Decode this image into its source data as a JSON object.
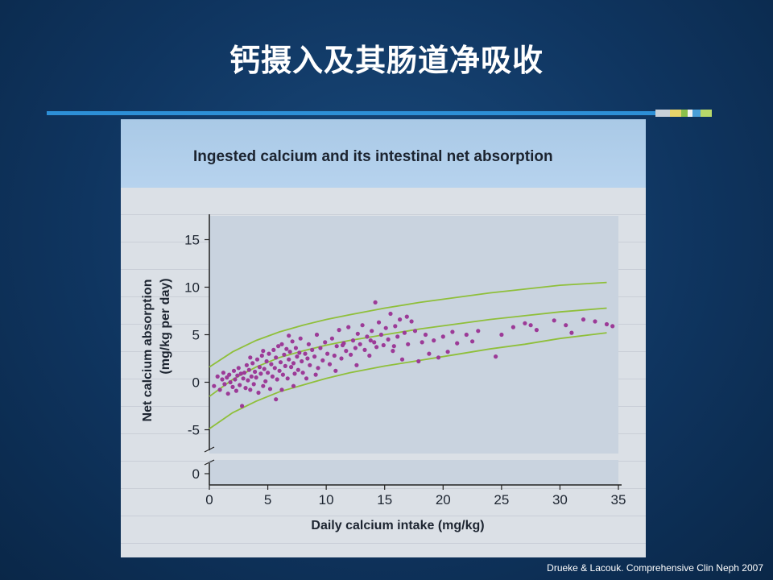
{
  "slide": {
    "title": "钙摄入及其肠道净吸收",
    "citation": "Drueke & Lacouk. Comprehensive Clin Neph 2007",
    "rule_colors": [
      "#c8d0d8",
      "#e8d46a",
      "#8cc04a",
      "#f2f2f2",
      "#4a9fd8",
      "#b8d86a"
    ]
  },
  "chart_data": {
    "type": "scatter",
    "title": "Ingested calcium and its intestinal net absorption",
    "xlabel": "Daily calcium intake (mg/kg)",
    "ylabel_line1": "Net calcium absorption",
    "ylabel_line2": "(mg/kg per day)",
    "xlim": [
      0,
      35
    ],
    "ylim_upper": [
      -7.5,
      17.5
    ],
    "ylim_lower": [
      -1,
      1
    ],
    "x_ticks": [
      "0",
      "5",
      "10",
      "15",
      "20",
      "25",
      "30",
      "35"
    ],
    "y_ticks_upper": [
      "15",
      "10",
      "5",
      "0",
      "-5"
    ],
    "y_ticks_lower": [
      "0"
    ],
    "colors": {
      "points": "#9c3a97",
      "curves": "#8fbf3a",
      "plot_bg": "#c9d3df"
    },
    "points": [
      [
        0.4,
        -0.4
      ],
      [
        0.7,
        0.6
      ],
      [
        0.9,
        -0.8
      ],
      [
        1.1,
        0.3
      ],
      [
        1.2,
        1.0
      ],
      [
        1.3,
        -0.2
      ],
      [
        1.5,
        0.5
      ],
      [
        1.6,
        -1.2
      ],
      [
        1.7,
        0.8
      ],
      [
        1.8,
        0.0
      ],
      [
        2.0,
        -0.5
      ],
      [
        2.1,
        1.2
      ],
      [
        2.2,
        0.3
      ],
      [
        2.3,
        -0.9
      ],
      [
        2.4,
        0.7
      ],
      [
        2.5,
        1.5
      ],
      [
        2.6,
        -0.3
      ],
      [
        2.7,
        0.9
      ],
      [
        2.8,
        -2.5
      ],
      [
        2.9,
        0.4
      ],
      [
        3.0,
        1.0
      ],
      [
        3.1,
        -0.6
      ],
      [
        3.2,
        1.8
      ],
      [
        3.3,
        0.2
      ],
      [
        3.4,
        1.3
      ],
      [
        3.5,
        -0.8
      ],
      [
        3.6,
        0.6
      ],
      [
        3.7,
        2.0
      ],
      [
        3.8,
        -0.2
      ],
      [
        3.9,
        1.1
      ],
      [
        4.0,
        0.5
      ],
      [
        4.1,
        2.4
      ],
      [
        4.2,
        -1.1
      ],
      [
        4.3,
        1.6
      ],
      [
        4.4,
        0.9
      ],
      [
        4.5,
        2.8
      ],
      [
        4.6,
        -0.4
      ],
      [
        4.7,
        1.4
      ],
      [
        4.8,
        0.1
      ],
      [
        4.9,
        2.2
      ],
      [
        5.0,
        1.0
      ],
      [
        5.1,
        3.0
      ],
      [
        5.2,
        -0.7
      ],
      [
        5.3,
        1.9
      ],
      [
        5.4,
        0.6
      ],
      [
        5.5,
        3.4
      ],
      [
        5.6,
        1.5
      ],
      [
        5.7,
        2.6
      ],
      [
        5.8,
        0.3
      ],
      [
        5.9,
        3.8
      ],
      [
        6.0,
        1.2
      ],
      [
        6.1,
        2.1
      ],
      [
        6.2,
        4.0
      ],
      [
        6.3,
        0.8
      ],
      [
        6.4,
        2.9
      ],
      [
        6.5,
        1.7
      ],
      [
        6.6,
        3.5
      ],
      [
        6.7,
        0.4
      ],
      [
        6.8,
        2.4
      ],
      [
        6.9,
        3.2
      ],
      [
        7.0,
        1.6
      ],
      [
        7.1,
        4.3
      ],
      [
        7.2,
        2.0
      ],
      [
        7.3,
        0.9
      ],
      [
        7.4,
        3.6
      ],
      [
        7.5,
        2.7
      ],
      [
        7.6,
        1.3
      ],
      [
        7.7,
        3.1
      ],
      [
        7.8,
        4.6
      ],
      [
        7.9,
        2.2
      ],
      [
        8.0,
        1.0
      ],
      [
        8.2,
        3.0
      ],
      [
        8.4,
        2.5
      ],
      [
        8.5,
        4.0
      ],
      [
        8.6,
        1.8
      ],
      [
        8.8,
        3.4
      ],
      [
        9.0,
        2.7
      ],
      [
        9.2,
        5.0
      ],
      [
        9.3,
        1.5
      ],
      [
        9.5,
        3.6
      ],
      [
        9.7,
        2.3
      ],
      [
        9.9,
        4.2
      ],
      [
        10.1,
        3.0
      ],
      [
        10.3,
        1.9
      ],
      [
        10.5,
        4.6
      ],
      [
        10.7,
        2.8
      ],
      [
        10.9,
        3.8
      ],
      [
        11.1,
        5.5
      ],
      [
        11.3,
        2.5
      ],
      [
        11.5,
        4.1
      ],
      [
        11.7,
        3.3
      ],
      [
        11.9,
        5.8
      ],
      [
        12.1,
        2.9
      ],
      [
        12.3,
        4.4
      ],
      [
        12.5,
        3.6
      ],
      [
        12.7,
        5.1
      ],
      [
        12.9,
        4.0
      ],
      [
        13.1,
        6.0
      ],
      [
        13.3,
        3.4
      ],
      [
        13.5,
        4.8
      ],
      [
        13.7,
        2.8
      ],
      [
        13.9,
        5.4
      ],
      [
        14.1,
        4.2
      ],
      [
        14.2,
        8.4
      ],
      [
        14.3,
        3.7
      ],
      [
        14.5,
        6.3
      ],
      [
        14.7,
        5.0
      ],
      [
        14.9,
        3.9
      ],
      [
        15.1,
        5.7
      ],
      [
        15.3,
        4.5
      ],
      [
        15.5,
        7.2
      ],
      [
        15.7,
        3.3
      ],
      [
        15.9,
        5.9
      ],
      [
        16.1,
        4.8
      ],
      [
        16.3,
        6.6
      ],
      [
        16.5,
        2.4
      ],
      [
        16.7,
        5.2
      ],
      [
        17.0,
        4.0
      ],
      [
        17.3,
        6.4
      ],
      [
        17.6,
        5.4
      ],
      [
        17.9,
        2.2
      ],
      [
        18.2,
        4.2
      ],
      [
        18.5,
        5.0
      ],
      [
        18.8,
        3.0
      ],
      [
        19.2,
        4.4
      ],
      [
        19.6,
        2.6
      ],
      [
        20.0,
        4.8
      ],
      [
        20.4,
        3.2
      ],
      [
        20.8,
        5.3
      ],
      [
        21.2,
        4.1
      ],
      [
        22.0,
        5.0
      ],
      [
        22.5,
        4.3
      ],
      [
        23.0,
        5.4
      ],
      [
        24.5,
        2.7
      ],
      [
        25.0,
        5.0
      ],
      [
        26.0,
        5.8
      ],
      [
        27.0,
        6.2
      ],
      [
        27.5,
        6.0
      ],
      [
        28.0,
        5.5
      ],
      [
        29.5,
        6.5
      ],
      [
        30.5,
        6.0
      ],
      [
        31.0,
        5.2
      ],
      [
        32.0,
        6.6
      ],
      [
        33.0,
        6.4
      ],
      [
        34.0,
        6.1
      ],
      [
        34.5,
        5.9
      ],
      [
        6.2,
        -0.8
      ],
      [
        8.3,
        0.4
      ],
      [
        10.8,
        1.2
      ],
      [
        12.6,
        1.8
      ],
      [
        3.5,
        2.6
      ],
      [
        5.7,
        -1.8
      ],
      [
        7.2,
        -0.4
      ],
      [
        9.1,
        0.8
      ],
      [
        4.6,
        3.3
      ],
      [
        6.8,
        4.9
      ],
      [
        11.4,
        3.9
      ],
      [
        13.8,
        4.4
      ],
      [
        15.8,
        3.8
      ],
      [
        16.9,
        6.9
      ]
    ],
    "curves": {
      "center": [
        [
          0,
          -1.5
        ],
        [
          2,
          0.3
        ],
        [
          4,
          1.6
        ],
        [
          6,
          2.6
        ],
        [
          8,
          3.3
        ],
        [
          10,
          3.9
        ],
        [
          12,
          4.4
        ],
        [
          15,
          5.0
        ],
        [
          18,
          5.6
        ],
        [
          21,
          6.1
        ],
        [
          24,
          6.6
        ],
        [
          27,
          7.0
        ],
        [
          30,
          7.4
        ],
        [
          34,
          7.8
        ]
      ],
      "upper": [
        [
          0,
          1.6
        ],
        [
          2,
          3.2
        ],
        [
          4,
          4.4
        ],
        [
          6,
          5.3
        ],
        [
          8,
          6.0
        ],
        [
          10,
          6.6
        ],
        [
          12,
          7.1
        ],
        [
          15,
          7.8
        ],
        [
          18,
          8.4
        ],
        [
          21,
          8.9
        ],
        [
          24,
          9.4
        ],
        [
          27,
          9.8
        ],
        [
          30,
          10.2
        ],
        [
          34,
          10.5
        ]
      ],
      "lower": [
        [
          0,
          -4.9
        ],
        [
          2,
          -3.2
        ],
        [
          4,
          -2.0
        ],
        [
          6,
          -1.0
        ],
        [
          8,
          -0.3
        ],
        [
          10,
          0.4
        ],
        [
          12,
          1.0
        ],
        [
          15,
          1.7
        ],
        [
          18,
          2.3
        ],
        [
          21,
          2.9
        ],
        [
          24,
          3.5
        ],
        [
          27,
          4.0
        ],
        [
          30,
          4.6
        ],
        [
          34,
          5.2
        ]
      ]
    }
  }
}
